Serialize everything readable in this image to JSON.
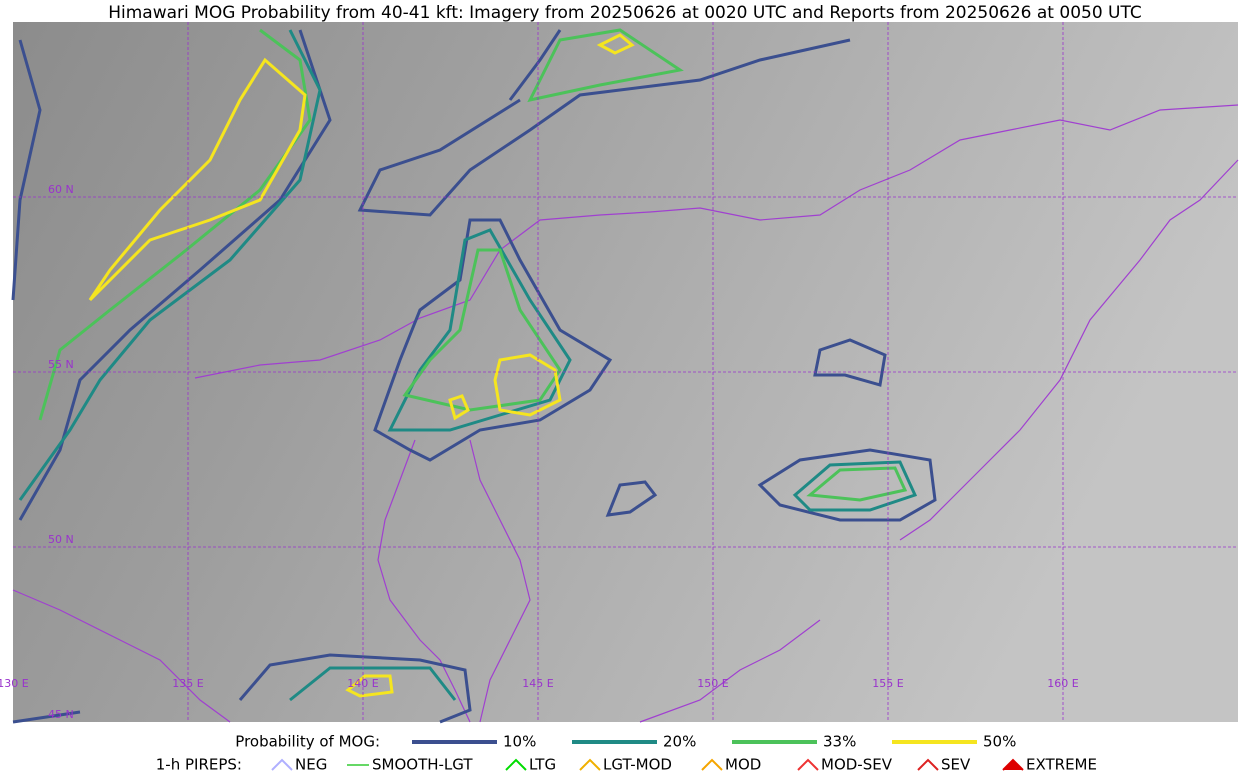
{
  "title": "Himawari MOG Probability from 40-41 kft: Imagery from 20250626 at 0020 UTC and Reports from 20250626 at 0050 UTC",
  "grid": {
    "lat_labels": [
      "60 N",
      "55 N",
      "50 N",
      "45 N"
    ],
    "lon_labels": [
      "130 E",
      "135 E",
      "140 E",
      "145 E",
      "150 E",
      "155 E",
      "160 E"
    ]
  },
  "legend": {
    "probability": {
      "label": "Probability of MOG:",
      "items": [
        {
          "label": "10%",
          "color": "#3b4f8f"
        },
        {
          "label": "20%",
          "color": "#1f8a85"
        },
        {
          "label": "33%",
          "color": "#4cc25a"
        },
        {
          "label": "50%",
          "color": "#f5e51f"
        }
      ]
    },
    "pireps": {
      "label": "1-h PIREPS:",
      "items": [
        {
          "label": "NEG",
          "color": "#b0b0ff"
        },
        {
          "label": "SMOOTH-LGT",
          "color": "#33cc33"
        },
        {
          "label": "LTG",
          "color": "#00dd00"
        },
        {
          "label": "LGT-MOD",
          "color": "#f0b000"
        },
        {
          "label": "MOD",
          "color": "#f5a500"
        },
        {
          "label": "MOD-SEV",
          "color": "#ee3333"
        },
        {
          "label": "SEV",
          "color": "#dd2222"
        },
        {
          "label": "EXTREME",
          "color": "#dd0000"
        }
      ]
    }
  }
}
